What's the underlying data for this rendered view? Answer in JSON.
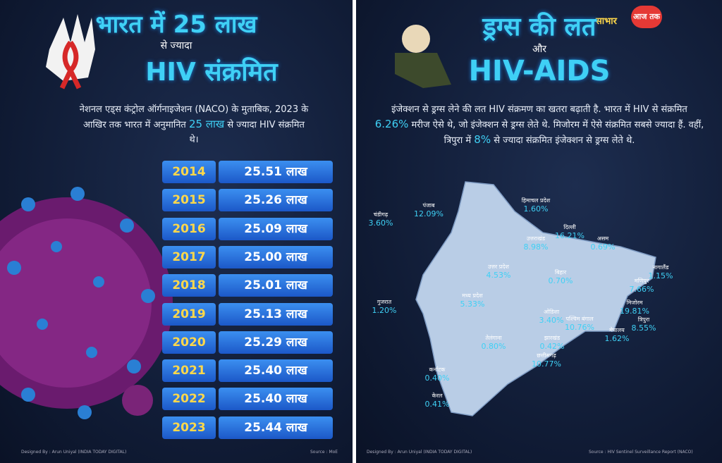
{
  "left": {
    "title_line1": "भारत में 25 लाख",
    "title_line2": "से ज्यादा",
    "title_line3": "HIV संक्रमित",
    "paragraph": {
      "before": "नेशनल एड्स कंट्रोल ऑर्गनाइजेशन (NACO) के मुताबिक, 2023 के आखिर तक भारत में अनुमानित",
      "highlight": "25 लाख",
      "after": "से ज्यादा HIV संक्रमित थे।"
    },
    "table": {
      "rows": [
        [
          "2014",
          "25.51 लाख"
        ],
        [
          "2015",
          "25.26 लाख"
        ],
        [
          "2016",
          "25.09 लाख"
        ],
        [
          "2017",
          "25.00 लाख"
        ],
        [
          "2018",
          "25.01 लाख"
        ],
        [
          "2019",
          "25.13 लाख"
        ],
        [
          "2020",
          "25.29 लाख"
        ],
        [
          "2021",
          "25.40 लाख"
        ],
        [
          "2022",
          "25.40 लाख"
        ],
        [
          "2023",
          "25.44 लाख"
        ]
      ]
    },
    "credit": "Designed By : Arun Uniyal (INDIA TODAY DIGITAL)",
    "source": "Source : MoE"
  },
  "right": {
    "courtesy": "साभार",
    "logo": "आज तक",
    "title_line1": "ड्रग्स की लत",
    "title_line2": "और",
    "title_line3": "HIV-AIDS",
    "paragraph": {
      "part1": "इंजेक्शन से ड्रग्स लेने की लत HIV संक्रमण का खतरा बढ़ाती है. भारत में HIV से संक्रमित",
      "highlight1": "6.26%",
      "part2": "मरीज ऐसे थे, जो इंजेक्शन से ड्रग्स लेते थे. मिजोरम में ऐसे संक्रमित सबसे ज्यादा हैं. वहीं, त्रिपुरा में",
      "highlight2": "8%",
      "part3": "से ज्यादा संक्रमित इंजेक्शन से ड्रग्स लेते थे."
    },
    "map_labels": [
      {
        "state": "चंडीगढ़",
        "value": "3.60%"
      },
      {
        "state": "पंजाब",
        "value": "12.09%"
      },
      {
        "state": "हिमाचल प्रदेश",
        "value": "1.60%"
      },
      {
        "state": "उत्तराखंड",
        "value": "8.98%"
      },
      {
        "state": "दिल्ली",
        "value": "16.21%"
      },
      {
        "state": "असम",
        "value": "0.69%"
      },
      {
        "state": "नागालैंड",
        "value": "1.15%"
      },
      {
        "state": "उत्तर प्रदेश",
        "value": "4.53%"
      },
      {
        "state": "बिहार",
        "value": "0.70%"
      },
      {
        "state": "मणिपुर",
        "value": "7.66%"
      },
      {
        "state": "मध्य प्रदेश",
        "value": "5.33%"
      },
      {
        "state": "मिजोरम",
        "value": "19.81%"
      },
      {
        "state": "गुजरात",
        "value": "1.20%"
      },
      {
        "state": "ओडिशा",
        "value": "3.40%"
      },
      {
        "state": "पश्चिम बंगाल",
        "value": "10.76%"
      },
      {
        "state": "त्रिपुरा",
        "value": "8.55%"
      },
      {
        "state": "झारखंड",
        "value": "0.42%"
      },
      {
        "state": "मेघालय",
        "value": "1.62%"
      },
      {
        "state": "तेलंगाना",
        "value": "0.80%"
      },
      {
        "state": "छत्तीसगढ़",
        "value": "10.77%"
      },
      {
        "state": "कर्नाटक",
        "value": "0.40%"
      },
      {
        "state": "केरल",
        "value": "0.41%"
      }
    ],
    "credit": "Designed By : Arun Uniyal (INDIA TODAY DIGITAL)",
    "source": "Source : HIV Sentinel Surveillance Report (NACO)"
  }
}
